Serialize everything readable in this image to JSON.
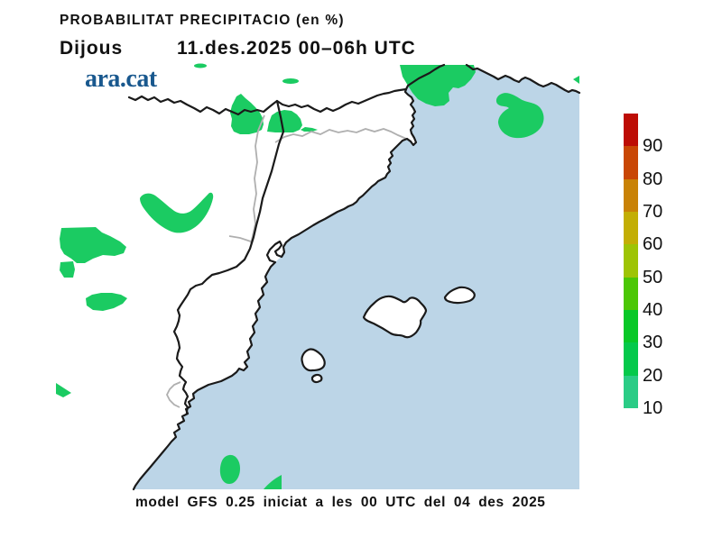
{
  "header": {
    "title": "PROBABILITAT PRECIPITACIO (en %)",
    "day": "Dijous",
    "datetime": "11.des.2025 00–06h UTC",
    "logo_text": "ara.cat",
    "logo_color": "#19588E"
  },
  "footer": {
    "model_info": "model GFS 0.25 iniciat a les 00 UTC del 04 des 2025"
  },
  "colorbar": {
    "unit": "%",
    "segments_bottom_to_top": [
      {
        "from": 10,
        "to": 20,
        "color": "#2BCC86"
      },
      {
        "from": 20,
        "to": 30,
        "color": "#05C94B"
      },
      {
        "from": 30,
        "to": 40,
        "color": "#09C827"
      },
      {
        "from": 40,
        "to": 50,
        "color": "#4CC706"
      },
      {
        "from": 50,
        "to": 60,
        "color": "#9EC405"
      },
      {
        "from": 60,
        "to": 70,
        "color": "#C3AE04"
      },
      {
        "from": 70,
        "to": 80,
        "color": "#C98206"
      },
      {
        "from": 80,
        "to": 90,
        "color": "#C94705"
      },
      {
        "from": 90,
        "to": 100,
        "color": "#BD0D05"
      }
    ]
  },
  "map": {
    "sea_color": "#BCD5E7",
    "land_color": "#FFFFFF",
    "coast_border_color": "#1A1A1A",
    "province_border_color": "#AFAFAF",
    "precip_patch_color": "#1BCB62",
    "precip_patch_level": "10"
  }
}
